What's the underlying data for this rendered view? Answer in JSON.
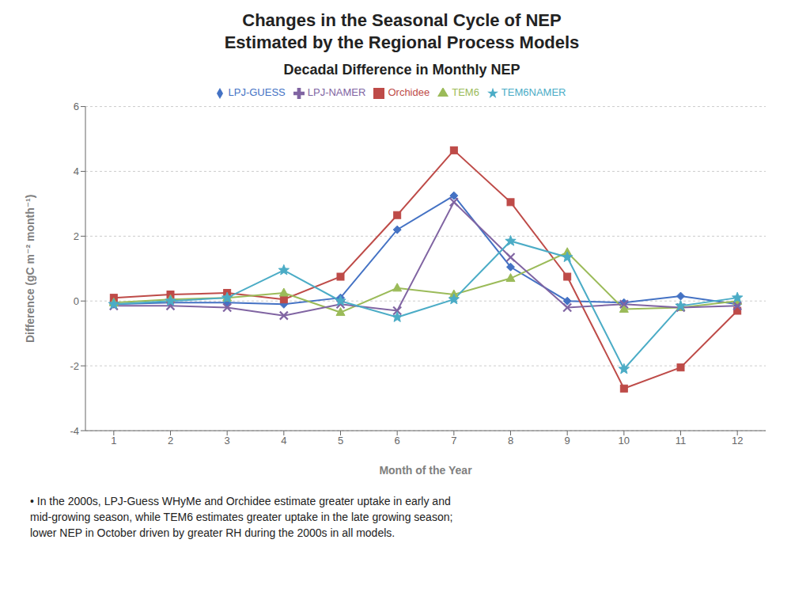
{
  "chart_data": {
    "type": "line",
    "title": "Changes in the Seasonal Cycle of NEP\nEstimated by the Regional Process Models",
    "subtitle": "Decadal Difference in Monthly NEP",
    "x_label": "Month of the Year",
    "y_label": "Difference (gC m⁻² month⁻¹)",
    "annotation": "• In the 2000s, LPJ-Guess WHyMe and Orchidee estimate greater uptake in early and\nmid-growing season, while TEM6 estimates greater uptake in the late growing season;\nlower NEP in October driven by greater RH during the 2000s in all models.",
    "x": [
      1,
      2,
      3,
      4,
      5,
      6,
      7,
      8,
      9,
      10,
      11,
      12
    ],
    "xlim": [
      0.5,
      12.5
    ],
    "xticks": [
      1,
      2,
      3,
      4,
      5,
      6,
      7,
      8,
      9,
      10,
      11,
      12
    ],
    "ylim": [
      -4,
      6
    ],
    "yticks": [
      -4,
      -2,
      0,
      2,
      4,
      6
    ],
    "grid": "y",
    "legend": "top",
    "series": [
      {
        "name": "LPJ-GUESS",
        "color": "#4472C4",
        "marker": "diamond",
        "values": [
          -0.1,
          -0.05,
          -0.05,
          -0.1,
          0.1,
          2.2,
          3.25,
          1.05,
          0.0,
          -0.05,
          0.15,
          -0.1
        ]
      },
      {
        "name": "Orchidee",
        "color": "#BE4B48",
        "marker": "square",
        "values": [
          0.1,
          0.2,
          0.25,
          0.05,
          0.75,
          2.65,
          4.65,
          3.05,
          0.75,
          -2.7,
          -2.05,
          -0.3
        ]
      },
      {
        "name": "TEM6",
        "color": "#9BBB59",
        "marker": "triangle",
        "values": [
          -0.05,
          0.05,
          0.1,
          0.25,
          -0.35,
          0.4,
          0.2,
          0.7,
          1.5,
          -0.25,
          -0.2,
          0.0
        ]
      },
      {
        "name": "LPJ-NAMER",
        "color": "#8064A2",
        "marker": "x",
        "values": [
          -0.15,
          -0.15,
          -0.2,
          -0.45,
          -0.1,
          -0.3,
          3.05,
          1.35,
          -0.2,
          -0.1,
          -0.2,
          -0.15
        ]
      },
      {
        "name": "TEM6NAMER",
        "color": "#4BACC6",
        "marker": "star",
        "values": [
          -0.1,
          0.0,
          0.1,
          0.95,
          0.0,
          -0.5,
          0.05,
          1.85,
          1.35,
          -2.1,
          -0.15,
          0.1
        ]
      }
    ]
  }
}
